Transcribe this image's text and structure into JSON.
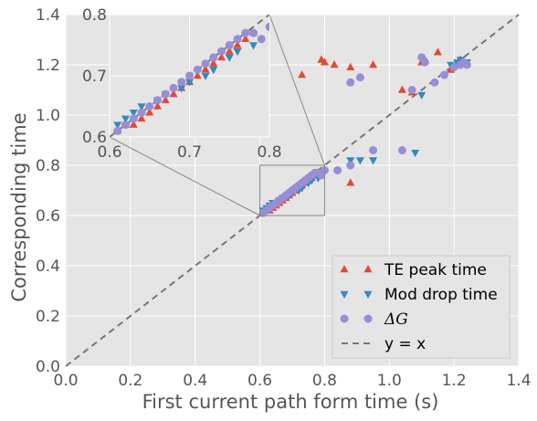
{
  "chart_data": {
    "type": "scatter",
    "xlabel": "First current path form time (s)",
    "ylabel": "Corresponding time",
    "xlim": [
      0.0,
      1.4
    ],
    "ylim": [
      0.0,
      1.4
    ],
    "xticks": [
      "0.0",
      "0.2",
      "0.4",
      "0.6",
      "0.8",
      "1.0",
      "1.2",
      "1.4"
    ],
    "yticks": [
      "0.0",
      "0.2",
      "0.4",
      "0.6",
      "0.8",
      "1.0",
      "1.2",
      "1.4"
    ],
    "grid": true,
    "legend_position": "bottom-right",
    "background": "#e5e5e5",
    "series": [
      {
        "name": "TE peak time",
        "marker": "triangle-up",
        "color": "#e24a33",
        "points": [
          [
            0.61,
            0.61
          ],
          [
            0.62,
            0.62
          ],
          [
            0.63,
            0.62
          ],
          [
            0.64,
            0.63
          ],
          [
            0.65,
            0.64
          ],
          [
            0.66,
            0.65
          ],
          [
            0.67,
            0.66
          ],
          [
            0.68,
            0.67
          ],
          [
            0.69,
            0.68
          ],
          [
            0.7,
            0.69
          ],
          [
            0.71,
            0.7
          ],
          [
            0.72,
            0.71
          ],
          [
            0.73,
            0.72
          ],
          [
            0.74,
            0.73
          ],
          [
            0.75,
            0.74
          ],
          [
            0.76,
            0.75
          ],
          [
            0.77,
            0.76
          ],
          [
            0.78,
            0.77
          ],
          [
            0.73,
            1.16
          ],
          [
            0.79,
            1.22
          ],
          [
            0.8,
            1.21
          ],
          [
            0.83,
            1.2
          ],
          [
            0.88,
            1.19
          ],
          [
            0.95,
            1.2
          ],
          [
            0.88,
            0.73
          ],
          [
            1.04,
            1.1
          ],
          [
            1.07,
            1.09
          ],
          [
            1.1,
            1.21
          ],
          [
            1.11,
            1.22
          ],
          [
            1.15,
            1.25
          ],
          [
            1.19,
            1.18
          ],
          [
            1.21,
            1.2
          ],
          [
            1.22,
            1.22
          ],
          [
            1.23,
            1.21
          ]
        ]
      },
      {
        "name": "Mod drop time",
        "marker": "triangle-down",
        "color": "#348abd",
        "points": [
          [
            0.61,
            0.62
          ],
          [
            0.62,
            0.63
          ],
          [
            0.63,
            0.64
          ],
          [
            0.64,
            0.65
          ],
          [
            0.66,
            0.66
          ],
          [
            0.67,
            0.67
          ],
          [
            0.69,
            0.68
          ],
          [
            0.7,
            0.69
          ],
          [
            0.72,
            0.7
          ],
          [
            0.73,
            0.71
          ],
          [
            0.75,
            0.73
          ],
          [
            0.76,
            0.74
          ],
          [
            0.78,
            0.75
          ],
          [
            0.88,
            0.82
          ],
          [
            0.91,
            0.82
          ],
          [
            0.95,
            0.82
          ],
          [
            1.08,
            0.85
          ],
          [
            1.1,
            1.08
          ],
          [
            1.19,
            1.2
          ],
          [
            1.21,
            1.21
          ],
          [
            1.22,
            1.22
          ],
          [
            1.24,
            1.21
          ]
        ]
      },
      {
        "name": "ΔG",
        "marker": "circle",
        "color": "#988ed5",
        "points": [
          [
            0.61,
            0.61
          ],
          [
            0.62,
            0.62
          ],
          [
            0.63,
            0.63
          ],
          [
            0.64,
            0.64
          ],
          [
            0.65,
            0.65
          ],
          [
            0.66,
            0.66
          ],
          [
            0.67,
            0.67
          ],
          [
            0.68,
            0.68
          ],
          [
            0.69,
            0.69
          ],
          [
            0.7,
            0.7
          ],
          [
            0.71,
            0.71
          ],
          [
            0.72,
            0.72
          ],
          [
            0.73,
            0.73
          ],
          [
            0.74,
            0.74
          ],
          [
            0.75,
            0.75
          ],
          [
            0.76,
            0.76
          ],
          [
            0.77,
            0.77
          ],
          [
            0.78,
            0.77
          ],
          [
            0.8,
            0.78
          ],
          [
            0.79,
            0.76
          ],
          [
            0.84,
            0.78
          ],
          [
            0.88,
            0.8
          ],
          [
            0.88,
            1.13
          ],
          [
            0.95,
            0.86
          ],
          [
            0.91,
            1.15
          ],
          [
            1.04,
            0.86
          ],
          [
            1.07,
            1.1
          ],
          [
            1.1,
            1.23
          ],
          [
            1.11,
            1.21
          ],
          [
            1.14,
            1.13
          ],
          [
            1.17,
            1.16
          ],
          [
            1.2,
            1.19
          ],
          [
            1.22,
            1.2
          ],
          [
            1.23,
            1.21
          ],
          [
            1.24,
            1.2
          ]
        ]
      },
      {
        "name": "y = x",
        "type": "line",
        "style": "dashed",
        "color": "#777777",
        "points": [
          [
            0.0,
            0.0
          ],
          [
            1.4,
            1.4
          ]
        ]
      }
    ],
    "inset": {
      "xlim": [
        0.6,
        0.8
      ],
      "ylim": [
        0.6,
        0.8
      ],
      "xticks": [
        "0.6",
        "0.7",
        "0.8"
      ],
      "yticks": [
        "0.6",
        "0.7",
        "0.8"
      ],
      "zoom_box": [
        [
          0.6,
          0.6
        ],
        [
          0.8,
          0.8
        ]
      ]
    }
  }
}
